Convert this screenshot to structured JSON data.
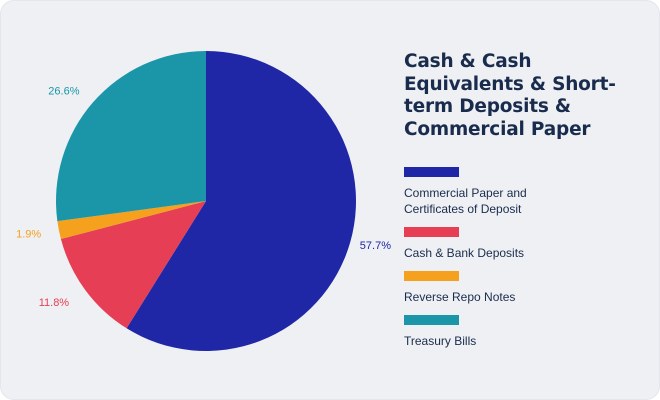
{
  "chart_data": {
    "type": "pie",
    "title": "Cash & Cash Equivalents & Short-term Deposits & Commercial Paper",
    "slices": [
      {
        "label": "Commercial Paper and\nCertificates of Deposit",
        "value": 57.7,
        "value_label": "57.7%",
        "color": "#1f27a6"
      },
      {
        "label": "Cash & Bank Deposits",
        "value": 11.8,
        "value_label": "11.8%",
        "color": "#e63e55"
      },
      {
        "label": "Reverse Repo Notes",
        "value": 1.9,
        "value_label": "1.9%",
        "color": "#f5a11d"
      },
      {
        "label": "Treasury Bills",
        "value": 26.6,
        "value_label": "26.6%",
        "color": "#1a96a8"
      }
    ],
    "start_angle_deg": 0,
    "direction": "clockwise",
    "legend_position": "right"
  }
}
